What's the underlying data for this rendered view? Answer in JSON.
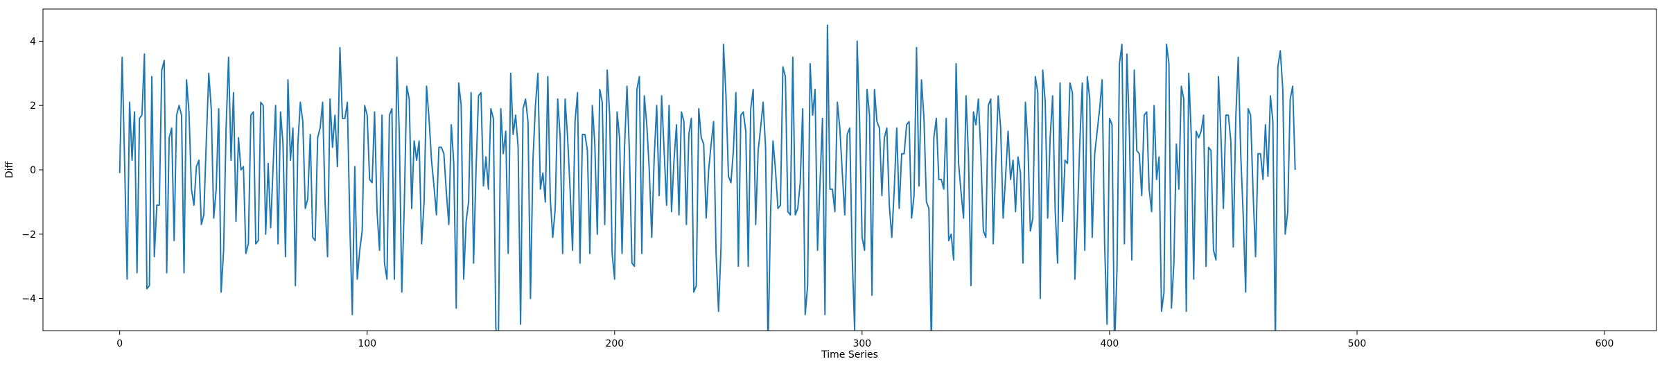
{
  "chart_data": {
    "type": "line",
    "title": "",
    "xlabel": "Time Series",
    "ylabel": "Diff",
    "xlim": [
      -31,
      621
    ],
    "ylim": [
      -5,
      5
    ],
    "x_ticks": [
      0,
      100,
      200,
      300,
      400,
      500,
      600
    ],
    "y_ticks": [
      -4,
      -2,
      0,
      2,
      4
    ],
    "x_tick_labels": [
      "0",
      "100",
      "200",
      "300",
      "400",
      "500",
      "600"
    ],
    "y_tick_labels": [
      "−4",
      "−2",
      "0",
      "2",
      "4"
    ],
    "grid": false,
    "legend": "none",
    "series": [
      {
        "color": "#1f77b4",
        "x_start": 0,
        "x_step": 1,
        "values": [
          -0.1,
          3.5,
          0.2,
          -3.4,
          2.1,
          0.3,
          1.8,
          -3.2,
          1.6,
          1.7,
          3.6,
          -3.7,
          -3.6,
          2.9,
          -2.7,
          -1.1,
          -1.1,
          3.1,
          3.4,
          -3.2,
          1.0,
          1.3,
          -2.2,
          1.7,
          2.0,
          1.7,
          -3.2,
          2.8,
          1.8,
          -0.6,
          -1.1,
          0.1,
          0.3,
          -1.7,
          -1.4,
          0.9,
          3.0,
          1.9,
          -1.5,
          -0.6,
          1.9,
          -3.8,
          -2.5,
          1.3,
          3.5,
          0.3,
          2.4,
          -1.6,
          1.0,
          0.0,
          0.1,
          -2.6,
          -2.3,
          1.7,
          1.8,
          -2.3,
          -2.2,
          2.1,
          2.0,
          -2.0,
          0.2,
          -1.8,
          0.1,
          2.0,
          -2.3,
          1.8,
          0.8,
          -2.7,
          2.8,
          0.3,
          1.3,
          -3.6,
          0.8,
          2.1,
          1.5,
          -1.2,
          -0.9,
          1.1,
          -2.1,
          -2.2,
          1.0,
          1.3,
          2.1,
          -1.0,
          -2.7,
          2.2,
          0.7,
          1.7,
          0.1,
          3.8,
          1.6,
          1.6,
          2.1,
          -1.7,
          -4.5,
          0.1,
          -3.4,
          -2.5,
          -1.9,
          2.0,
          1.7,
          -0.3,
          -0.4,
          1.8,
          -1.3,
          -2.5,
          1.7,
          -2.9,
          -3.4,
          1.7,
          1.9,
          -3.4,
          3.5,
          1.1,
          -3.8,
          -1.1,
          2.6,
          2.2,
          -1.2,
          0.9,
          0.3,
          0.9,
          -2.3,
          -1.0,
          2.6,
          1.6,
          0.3,
          -0.5,
          -1.4,
          0.7,
          0.7,
          0.5,
          -0.7,
          -1.7,
          1.4,
          0.2,
          -4.3,
          2.7,
          2.0,
          -3.4,
          -1.6,
          -1.0,
          2.4,
          -2.9,
          0.0,
          2.3,
          2.4,
          -0.5,
          0.4,
          -0.6,
          1.9,
          1.6,
          -4.9,
          -5.6,
          1.9,
          0.5,
          1.2,
          -2.6,
          3.0,
          1.1,
          1.7,
          0.7,
          -4.8,
          1.9,
          2.2,
          1.5,
          -4.0,
          0.3,
          2.0,
          3.0,
          -0.6,
          -0.1,
          -1.0,
          2.9,
          -0.9,
          -2.1,
          -1.2,
          2.2,
          1.0,
          -2.6,
          2.2,
          1.0,
          -0.6,
          -2.5,
          1.5,
          2.4,
          -2.9,
          1.1,
          1.1,
          0.6,
          -2.6,
          2.0,
          0.8,
          -2.0,
          2.5,
          2.1,
          -1.7,
          3.1,
          1.7,
          -2.6,
          -3.4,
          1.8,
          1.0,
          -2.6,
          0.7,
          2.6,
          0.5,
          -2.9,
          -3.0,
          2.5,
          2.9,
          -2.6,
          2.3,
          1.4,
          0.0,
          -2.1,
          0.4,
          2.0,
          -0.8,
          2.3,
          0.6,
          -1.1,
          2.0,
          -1.3,
          0.3,
          1.4,
          -1.4,
          1.8,
          1.5,
          -1.7,
          1.1,
          1.6,
          -3.8,
          -3.6,
          1.9,
          1.0,
          0.8,
          -1.5,
          0.0,
          0.8,
          1.5,
          -2.6,
          -4.4,
          -2.4,
          3.9,
          2.3,
          -0.2,
          -0.4,
          0.6,
          2.4,
          -3.0,
          1.7,
          1.8,
          1.2,
          -3.0,
          1.9,
          2.5,
          -1.7,
          0.6,
          1.3,
          2.1,
          0.7,
          -5.6,
          -1.4,
          0.9,
          0.0,
          -1.2,
          -1.1,
          3.2,
          2.9,
          -1.3,
          -1.4,
          3.5,
          -1.4,
          -1.2,
          -0.4,
          1.9,
          -4.5,
          -3.6,
          3.3,
          1.7,
          2.5,
          -2.5,
          -0.4,
          1.6,
          -4.5,
          4.5,
          -0.6,
          -0.6,
          -1.3,
          2.1,
          1.3,
          -0.1,
          -1.4,
          1.1,
          1.3,
          -2.7,
          -5.0,
          4.0,
          1.5,
          -2.1,
          -2.5,
          2.5,
          1.7,
          -3.9,
          2.5,
          1.5,
          1.3,
          -0.8,
          1.0,
          1.3,
          -1.1,
          -2.1,
          -0.6,
          1.3,
          -1.2,
          0.5,
          0.5,
          1.4,
          1.5,
          -1.5,
          -0.8,
          3.8,
          -0.5,
          2.8,
          1.6,
          -1.0,
          -1.2,
          -5.5,
          1.0,
          1.6,
          -0.3,
          -0.3,
          -0.6,
          1.6,
          -2.2,
          -2.0,
          -2.8,
          3.3,
          0.2,
          -0.7,
          -1.5,
          2.3,
          0.4,
          -3.6,
          1.8,
          1.4,
          2.2,
          0.5,
          -1.9,
          -2.1,
          2.0,
          2.2,
          -2.3,
          0.2,
          2.3,
          1.3,
          -1.5,
          -0.2,
          1.2,
          -0.3,
          0.3,
          -1.3,
          0.4,
          -0.1,
          -2.9,
          2.1,
          0.8,
          -1.9,
          -1.5,
          2.9,
          2.4,
          -4.0,
          3.1,
          2.1,
          -1.5,
          1.0,
          2.3,
          -1.2,
          -2.9,
          2.7,
          -1.6,
          0.3,
          0.2,
          2.7,
          2.4,
          -3.4,
          -1.5,
          0.9,
          2.7,
          -2.5,
          2.9,
          2.2,
          -2.1,
          0.5,
          1.2,
          1.9,
          2.8,
          -2.3,
          -4.8,
          1.6,
          1.4,
          -5.6,
          -3.1,
          3.3,
          3.9,
          -2.3,
          3.6,
          1.2,
          -2.8,
          3.1,
          0.6,
          0.5,
          -0.8,
          1.7,
          1.8,
          -0.6,
          -1.3,
          2.0,
          -0.3,
          0.4,
          -4.4,
          -3.8,
          3.9,
          3.3,
          -4.3,
          -2.9,
          0.8,
          -0.6,
          2.6,
          2.2,
          -4.4,
          3.0,
          1.1,
          -3.4,
          1.2,
          1.0,
          1.2,
          1.7,
          -3.0,
          0.7,
          0.6,
          -2.5,
          -2.8,
          2.9,
          1.1,
          -1.2,
          1.7,
          1.7,
          0.9,
          -2.4,
          1.6,
          3.5,
          0.5,
          -1.4,
          -3.8,
          1.9,
          1.7,
          -0.7,
          -2.7,
          0.5,
          0.5,
          -0.3,
          1.4,
          -0.2,
          2.3,
          1.5,
          -5.5,
          3.2,
          3.7,
          2.5,
          -2.0,
          -1.3,
          2.2,
          2.6,
          0.0
        ]
      }
    ]
  }
}
